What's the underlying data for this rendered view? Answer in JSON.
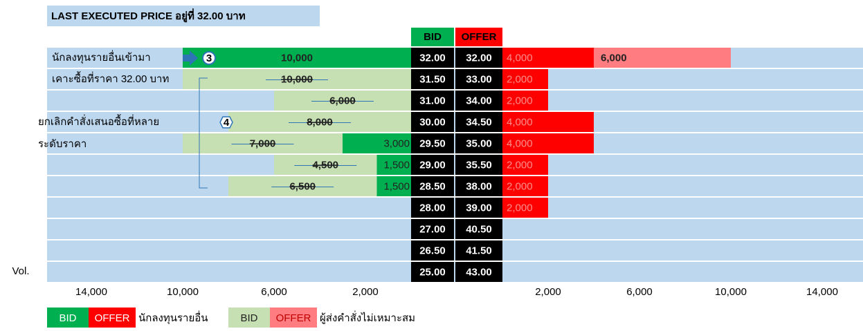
{
  "title": "LAST EXECUTED PRICE อยู่ที่ 32.00 บาท",
  "header": {
    "bid": "BID",
    "offer": "OFFER"
  },
  "rows": [
    {
      "bid_price": "32.00",
      "offer_price": "32.00",
      "bid": [
        {
          "type": "investor",
          "volume": 10000,
          "label": "10,000"
        }
      ],
      "offer": [
        {
          "type": "investor",
          "volume": 4000,
          "label": "4,000"
        },
        {
          "type": "improper",
          "volume": 6000,
          "label": "6,000"
        }
      ]
    },
    {
      "bid_price": "31.50",
      "offer_price": "33.00",
      "bid": [
        {
          "type": "improper",
          "volume": 10000,
          "label": "10,000"
        }
      ],
      "offer": [
        {
          "type": "investor",
          "volume": 2000,
          "label": "2,000"
        }
      ]
    },
    {
      "bid_price": "31.00",
      "offer_price": "34.00",
      "bid": [
        {
          "type": "improper",
          "volume": 6000,
          "label": "6,000"
        }
      ],
      "offer": [
        {
          "type": "investor",
          "volume": 2000,
          "label": "2,000"
        }
      ]
    },
    {
      "bid_price": "30.00",
      "offer_price": "34.50",
      "bid": [
        {
          "type": "improper",
          "volume": 8000,
          "label": "8,000"
        }
      ],
      "offer": [
        {
          "type": "investor",
          "volume": 4000,
          "label": "4,000"
        }
      ]
    },
    {
      "bid_price": "29.50",
      "offer_price": "35.00",
      "bid": [
        {
          "type": "investor",
          "volume": 3000,
          "label": "3,000"
        },
        {
          "type": "improper",
          "volume": 7000,
          "label": "7,000"
        }
      ],
      "offer": [
        {
          "type": "investor",
          "volume": 4000,
          "label": "4,000"
        }
      ]
    },
    {
      "bid_price": "29.00",
      "offer_price": "35.50",
      "bid": [
        {
          "type": "investor",
          "volume": 1500,
          "label": "1,500"
        },
        {
          "type": "improper",
          "volume": 4500,
          "label": "4,500"
        }
      ],
      "offer": [
        {
          "type": "investor",
          "volume": 2000,
          "label": "2,000"
        }
      ]
    },
    {
      "bid_price": "28.50",
      "offer_price": "38.00",
      "bid": [
        {
          "type": "investor",
          "volume": 1500,
          "label": "1,500"
        },
        {
          "type": "improper",
          "volume": 6500,
          "label": "6,500"
        }
      ],
      "offer": [
        {
          "type": "investor",
          "volume": 2000,
          "label": "2,000"
        }
      ]
    },
    {
      "bid_price": "28.00",
      "offer_price": "39.00",
      "bid": [],
      "offer": [
        {
          "type": "investor",
          "volume": 2000,
          "label": "2,000"
        }
      ]
    },
    {
      "bid_price": "27.00",
      "offer_price": "40.50",
      "bid": [],
      "offer": []
    },
    {
      "bid_price": "26.50",
      "offer_price": "41.50",
      "bid": [],
      "offer": []
    },
    {
      "bid_price": "25.00",
      "offer_price": "43.00",
      "bid": [],
      "offer": []
    }
  ],
  "notes": [
    "นักลงทุนรายอื่นเข้ามา",
    "เคาะซื้อที่ราคา 32.00 บาท",
    "ยกเลิกคำสั่งเสนอซื้อที่หลาย",
    "ระดับราคา"
  ],
  "markers": [
    "3",
    "4"
  ],
  "vol_label": "Vol.",
  "ticks": [
    {
      "value": 2000,
      "label": "2,000"
    },
    {
      "value": 6000,
      "label": "6,000"
    },
    {
      "value": 10000,
      "label": "10,000"
    },
    {
      "value": 14000,
      "label": "14,000"
    }
  ],
  "legend": [
    {
      "bid": "BID",
      "offer": "OFFER",
      "text": "นักลงทุนรายอื่น",
      "type": "investor"
    },
    {
      "bid": "BID",
      "offer": "OFFER",
      "text": "ผู้ส่งคำสั่งไม่เหมาะสม",
      "type": "improper"
    }
  ]
}
